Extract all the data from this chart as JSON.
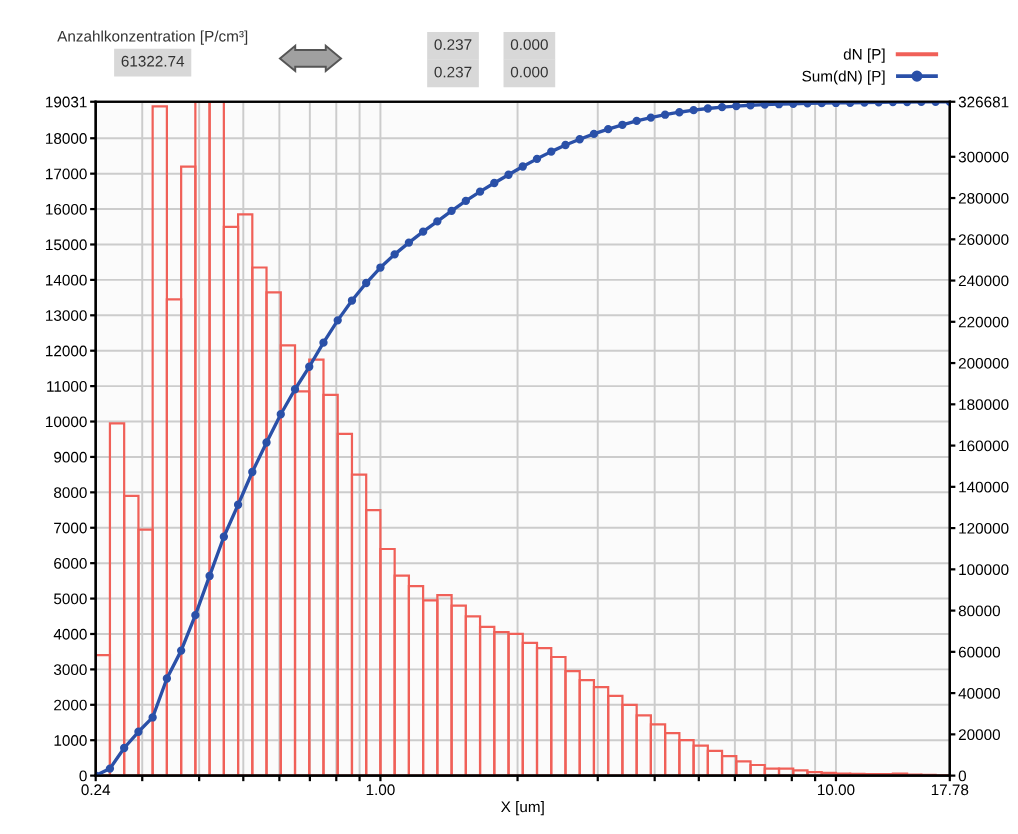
{
  "chart_data": {
    "type": "histogram",
    "xlabel": "X [um]",
    "log": "x",
    "grid": true,
    "legend": "top right",
    "annotations": [
      "Anzahlkonzentration [P/cm³]",
      "61322.74",
      "0.237",
      "0.000",
      "0.237",
      "0.000"
    ],
    "bins": [
      0.2371,
      0.2548,
      0.2738,
      0.2943,
      0.3162,
      0.3398,
      0.3652,
      0.3924,
      0.4217,
      0.4532,
      0.487,
      0.5233,
      0.5623,
      0.6043,
      0.6494,
      0.6978,
      0.7499,
      0.8058,
      0.866,
      0.9306,
      1.0,
      1.0746,
      1.1548,
      1.2409,
      1.3335,
      1.433,
      1.5399,
      1.6548,
      1.7783,
      1.911,
      2.0535,
      2.2067,
      2.3714,
      2.5483,
      2.7384,
      2.9427,
      3.1623,
      3.398,
      3.652,
      3.924,
      4.217,
      4.532,
      4.87,
      5.233,
      5.623,
      6.043,
      6.494,
      6.978,
      7.499,
      8.058,
      8.66,
      9.306,
      10.0,
      10.746,
      11.548,
      12.409,
      13.335,
      14.33,
      15.399,
      16.548,
      17.78
    ],
    "xlim": [
      0.2371,
      17.78
    ],
    "xticks": [
      {
        "value": 0.2371,
        "label": "0.24"
      },
      {
        "value": 0.3,
        "label": null
      },
      {
        "value": 0.4,
        "label": null
      },
      {
        "value": 0.5,
        "label": null
      },
      {
        "value": 0.6,
        "label": null
      },
      {
        "value": 0.7,
        "label": null
      },
      {
        "value": 0.8,
        "label": null
      },
      {
        "value": 0.9,
        "label": null
      },
      {
        "value": 1,
        "label": "1.00"
      },
      {
        "value": 2,
        "label": null
      },
      {
        "value": 3,
        "label": null
      },
      {
        "value": 4,
        "label": null
      },
      {
        "value": 5,
        "label": null
      },
      {
        "value": 6,
        "label": null
      },
      {
        "value": 7,
        "label": null
      },
      {
        "value": 8,
        "label": null
      },
      {
        "value": 9,
        "label": null
      },
      {
        "value": 10,
        "label": "10.00"
      },
      17.78
    ],
    "ylim": [
      0,
      19031
    ],
    "yticks": [
      0,
      1000,
      2000,
      3000,
      4000,
      5000,
      6000,
      7000,
      8000,
      9000,
      10000,
      11000,
      12000,
      13000,
      14000,
      15000,
      16000,
      17000,
      18000,
      19031
    ],
    "y2lim": [
      0,
      326681
    ],
    "y2ticks": [
      0,
      20000,
      40000,
      60000,
      80000,
      100000,
      120000,
      140000,
      160000,
      180000,
      200000,
      220000,
      240000,
      260000,
      280000,
      300000,
      326681
    ],
    "series": [
      {
        "name": "dN [P]",
        "color": "#f06058",
        "values": [
          3400,
          9950,
          7900,
          6950,
          18900,
          13450,
          17200,
          19031,
          19031,
          15500,
          15850,
          14350,
          13650,
          12150,
          10850,
          11750,
          10750,
          9650,
          8500,
          7500,
          6400,
          5650,
          5350,
          4950,
          5100,
          4800,
          4500,
          4200,
          4050,
          4000,
          3750,
          3600,
          3350,
          2950,
          2700,
          2500,
          2250,
          2000,
          1700,
          1450,
          1200,
          1000,
          850,
          700,
          550,
          400,
          300,
          200,
          200,
          150,
          100,
          80,
          60,
          50,
          40,
          40,
          60,
          30,
          20,
          10
        ]
      },
      {
        "name": "Sum(dN) [P]",
        "type": "line",
        "axis": "y2",
        "marker": "circle",
        "color": "#2a50a8",
        "x": [
          0.2371,
          0.2548,
          0.2738,
          0.2943,
          0.3162,
          0.3398,
          0.3652,
          0.3924,
          0.4217,
          0.4532,
          0.487,
          0.5233,
          0.5623,
          0.6043,
          0.6494,
          0.6978,
          0.7499,
          0.8058,
          0.866,
          0.9306,
          1.0,
          1.0746,
          1.1548,
          1.2409,
          1.3335,
          1.433,
          1.5399,
          1.6548,
          1.7783,
          1.911,
          2.0535,
          2.2067,
          2.3714,
          2.5483,
          2.7384,
          2.9427,
          3.1623,
          3.398,
          3.652,
          3.924,
          4.217,
          4.532,
          4.87,
          5.233,
          5.623,
          6.043,
          6.494,
          6.978,
          7.499,
          8.058,
          8.66,
          9.306,
          10.0,
          10.746,
          11.548,
          12.409,
          13.335,
          14.33,
          15.399,
          16.548,
          17.78
        ],
        "values": [
          0,
          3400,
          13400,
          21250,
          28200,
          47100,
          60600,
          77800,
          96800,
          115800,
          131300,
          147200,
          161500,
          175200,
          187300,
          198200,
          209900,
          220700,
          230300,
          238800,
          246300,
          252700,
          258400,
          263700,
          268700,
          273800,
          278600,
          283100,
          287300,
          291300,
          295300,
          299000,
          302500,
          305700,
          308500,
          311100,
          313400,
          315500,
          317400,
          319000,
          320400,
          321600,
          322600,
          323400,
          324100,
          324600,
          325000,
          325300,
          325500,
          325700,
          325900,
          326000,
          326100,
          326200,
          326300,
          326400,
          326500,
          326550,
          326600,
          326650,
          326681
        ]
      }
    ]
  }
}
